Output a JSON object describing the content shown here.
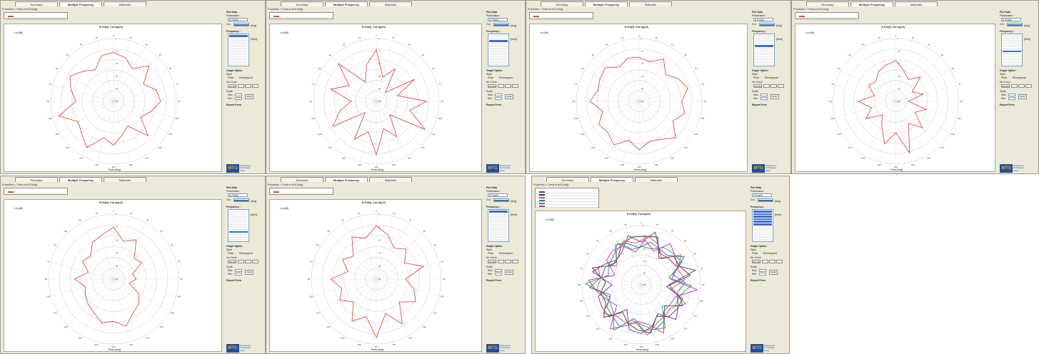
{
  "tabs": [
    "Summary",
    "Multiple Frequency",
    "Materials"
  ],
  "header_text": "Properties > Theta at at f0 [deg]",
  "plot_title": "E-Pol(0), Cut #(φ=0)",
  "unit_label": "Lin [dB]",
  "angle_label": "Theta [deg]",
  "sidebar": {
    "plot_data": "Plot Data",
    "polarization": "Polarization :",
    "pol_value": "E-Pol(0)",
    "cut": "Cut :",
    "cut_unit": "[deg]",
    "frequency": "Frequency :",
    "freq_unit": "[MHz]",
    "graph_option": "Graph Option",
    "style": "Style",
    "polar": "Polar",
    "rectangular": "Rectangular",
    "no_curve": "No Curve",
    "cut_no": "Cut No",
    "scale": "Scale",
    "max": "Max :",
    "min": "Min :",
    "apply": "Apply",
    "report_form": "Report Form"
  },
  "logo": {
    "mark": "MTG",
    "line1": "Measurement",
    "line2": "Technologies",
    "line3": "Group"
  },
  "colors": {
    "curve": "#d9534f",
    "accent": "#3a6fc7",
    "panel": "#ece9d8"
  },
  "chart_data": {
    "type": "polar",
    "note_series": [
      "Panel 1 pattern",
      "Panel 2 pattern"
    ],
    "r_ticks": [
      "-50",
      "-40",
      "-30",
      "-20",
      "-10",
      "0"
    ],
    "series": [
      {
        "values": [
          0.78,
          0.72,
          0.6,
          0.8,
          0.55,
          0.7,
          0.75,
          0.62,
          0.5,
          0.78,
          0.45,
          0.55,
          0.7,
          0.6,
          0.85,
          0.72,
          0.65,
          0.9,
          0.6,
          0.7,
          0.8,
          0.68,
          0.58,
          0.75
        ]
      },
      {
        "values": [
          0.82,
          0.4,
          0.6,
          0.2,
          0.7,
          0.35,
          0.8,
          0.55,
          0.9,
          0.3,
          0.65,
          0.45,
          0.85,
          0.5,
          0.7,
          0.25,
          0.8,
          0.6,
          0.4,
          0.75,
          0.5,
          0.85,
          0.35,
          0.6
        ]
      },
      {
        "values": [
          0.7,
          0.65,
          0.78,
          0.6,
          0.72,
          0.8,
          0.68,
          0.75,
          0.62,
          0.82,
          0.7,
          0.66,
          0.77,
          0.64,
          0.8,
          0.7,
          0.74,
          0.6,
          0.78,
          0.68,
          0.72,
          0.76,
          0.63,
          0.71
        ]
      },
      {
        "values": [
          0.65,
          0.5,
          0.4,
          0.55,
          0.3,
          0.45,
          0.2,
          0.5,
          0.35,
          0.6,
          0.4,
          0.85,
          0.5,
          0.7,
          0.45,
          0.3,
          0.55,
          0.4,
          0.6,
          0.35,
          0.5,
          0.45,
          0.55,
          0.6
        ]
      },
      {
        "values": [
          0.8,
          0.6,
          0.7,
          0.45,
          0.5,
          0.3,
          0.35,
          0.25,
          0.45,
          0.55,
          0.6,
          0.75,
          0.65,
          0.7,
          0.6,
          0.55,
          0.5,
          0.45,
          0.6,
          0.4,
          0.55,
          0.5,
          0.65,
          0.7
        ]
      },
      {
        "values": [
          0.82,
          0.7,
          0.55,
          0.65,
          0.5,
          0.75,
          0.45,
          0.6,
          0.7,
          0.5,
          0.8,
          0.55,
          0.9,
          0.6,
          0.75,
          0.5,
          0.65,
          0.55,
          0.7,
          0.45,
          0.6,
          0.5,
          0.75,
          0.65
        ]
      },
      {
        "values": [
          0.72,
          0.8,
          0.65,
          0.75,
          0.6,
          0.85,
          0.55,
          0.7,
          0.62,
          0.78,
          0.68,
          0.74,
          0.7,
          0.8,
          0.6,
          0.72,
          0.66,
          0.82,
          0.58,
          0.76,
          0.64,
          0.7,
          0.68,
          0.74
        ]
      }
    ]
  }
}
